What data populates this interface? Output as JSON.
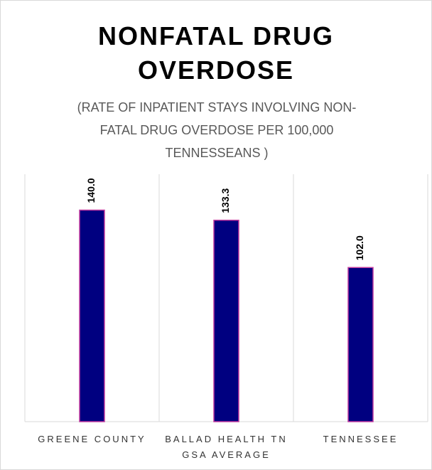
{
  "chart_data": {
    "type": "bar",
    "title": "NONFATAL DRUG OVERDOSE",
    "subtitle": "(RATE OF INPATIENT STAYS INVOLVING NON-FATAL DRUG OVERDOSE PER 100,000 TENNESSEANS )",
    "categories": [
      "GREENE COUNTY",
      "BALLAD HEALTH TN GSA AVERAGE",
      "TENNESSEE"
    ],
    "values": [
      140.0,
      133.3,
      102.0
    ],
    "value_labels": [
      "140.0",
      "133.3",
      "102.0"
    ],
    "color": "#000080",
    "ylim": [
      0,
      160
    ]
  }
}
